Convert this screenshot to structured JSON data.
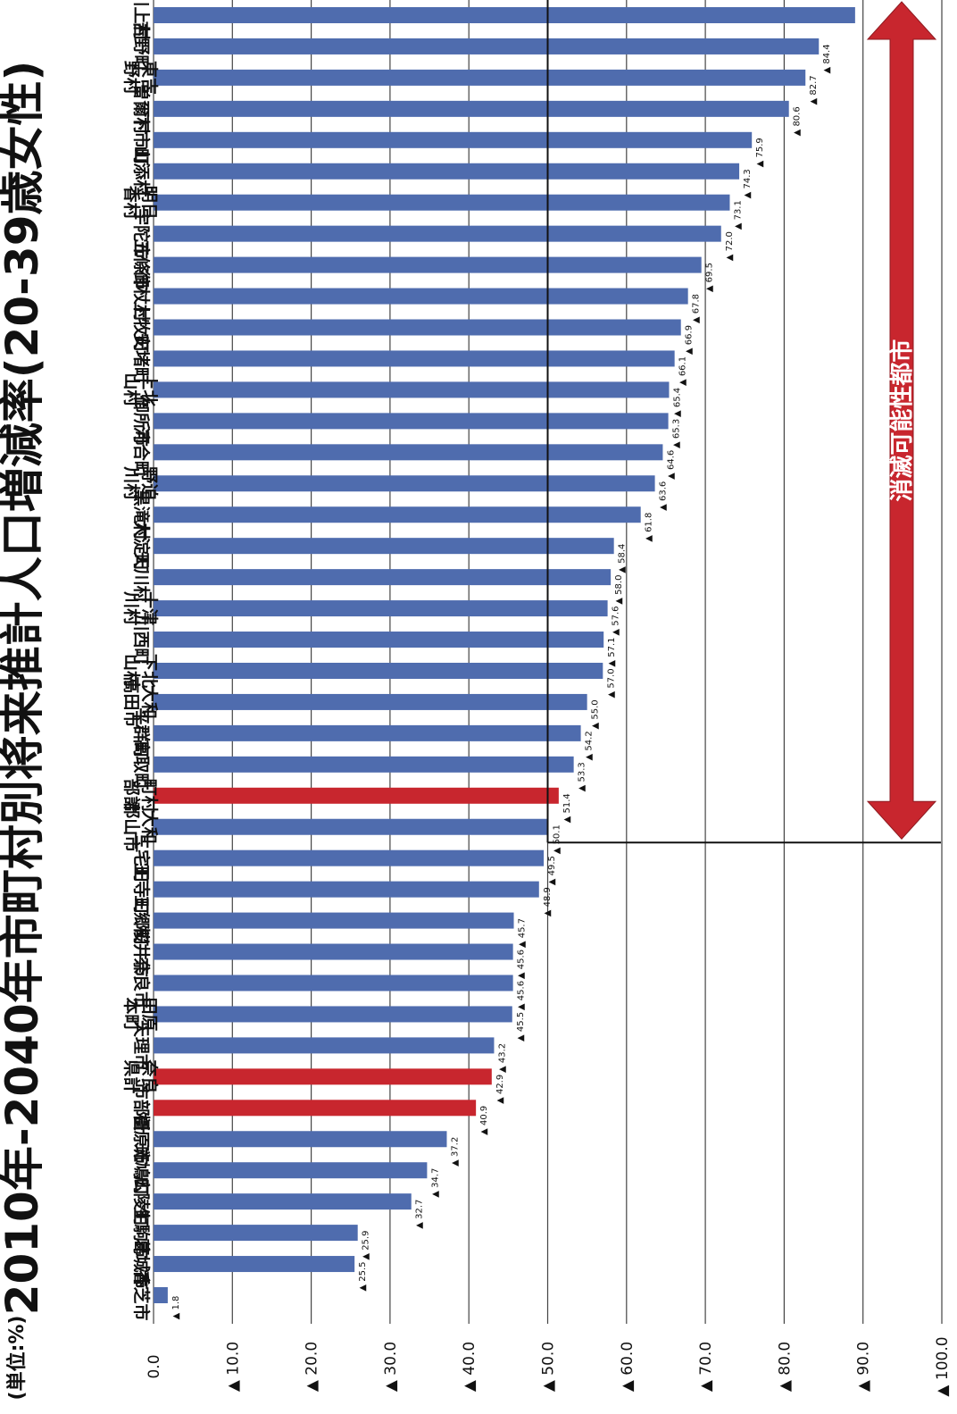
{
  "chart_data": {
    "type": "bar",
    "orientation": "horizontal",
    "title": "2010年-2040年市町村別将来推計人口増減率(20-39歳女性)",
    "unit_label": "(単位:%)",
    "x_ticks": [
      "0.0",
      "▲ 10.0",
      "▲ 20.0",
      "▲ 30.0",
      "▲ 40.0",
      "▲ 50.0",
      "▲ 60.0",
      "▲ 70.0",
      "▲ 80.0",
      "▲ 90.0",
      "▲ 100.0"
    ],
    "xlim": [
      0,
      100
    ],
    "grid": true,
    "threshold": 50,
    "band_label": "消滅可能性都市",
    "colors": {
      "normal": "#4f6cae",
      "aggregate": "#c8262e",
      "band": "#c8262e"
    },
    "categories": [
      "川上村",
      "吉野町",
      "東吉野村",
      "曽爾村",
      "下市町",
      "山添村",
      "明日香村",
      "宇陀市",
      "五條市",
      "御杖村",
      "上牧町",
      "安堵町",
      "上北山村",
      "御所市",
      "河合町",
      "野迫川村",
      "黒滝村",
      "大淀町",
      "天川村",
      "十津川村",
      "川西町",
      "下北山村",
      "大和高田市",
      "平群町",
      "高取町",
      "町村部計",
      "大和郡山市",
      "三宅町",
      "王寺町",
      "三郷町",
      "桜井市",
      "奈良市",
      "田原本町",
      "天理市",
      "奈良県計",
      "市部計",
      "橿原市",
      "斑鳩町",
      "広陵町",
      "生駒市",
      "葛城市",
      "香芝市"
    ],
    "values": [
      89.0,
      84.4,
      82.7,
      80.6,
      75.9,
      74.3,
      73.1,
      72.0,
      69.5,
      67.8,
      66.9,
      66.1,
      65.4,
      65.3,
      64.6,
      63.6,
      61.8,
      58.4,
      58.0,
      57.6,
      57.1,
      57.0,
      55.0,
      54.2,
      53.3,
      51.4,
      50.1,
      49.5,
      48.9,
      45.7,
      45.6,
      45.6,
      45.5,
      43.2,
      42.9,
      40.9,
      37.2,
      34.7,
      32.7,
      25.9,
      25.5,
      1.8
    ],
    "labels": [
      "",
      "84.4",
      "82.7",
      "80.6",
      "75.9",
      "74.3",
      "73.1",
      "72.0",
      "69.5",
      "67.8",
      "66.9",
      "66.1",
      "65.4",
      "65.3",
      "64.6",
      "63.6",
      "61.8",
      "58.4",
      "58.0",
      "57.6",
      "57.1",
      "57.0",
      "55.0",
      "54.2",
      "53.3",
      "51.4",
      "50.1",
      "49.5",
      "48.9",
      "45.7",
      "45.6",
      "45.6",
      "45.5",
      "43.2",
      "42.9",
      "40.9",
      "37.2",
      "34.7",
      "32.7",
      "25.9",
      "25.5",
      "1.8"
    ],
    "aggregate_indices": [
      25,
      34,
      35
    ]
  }
}
